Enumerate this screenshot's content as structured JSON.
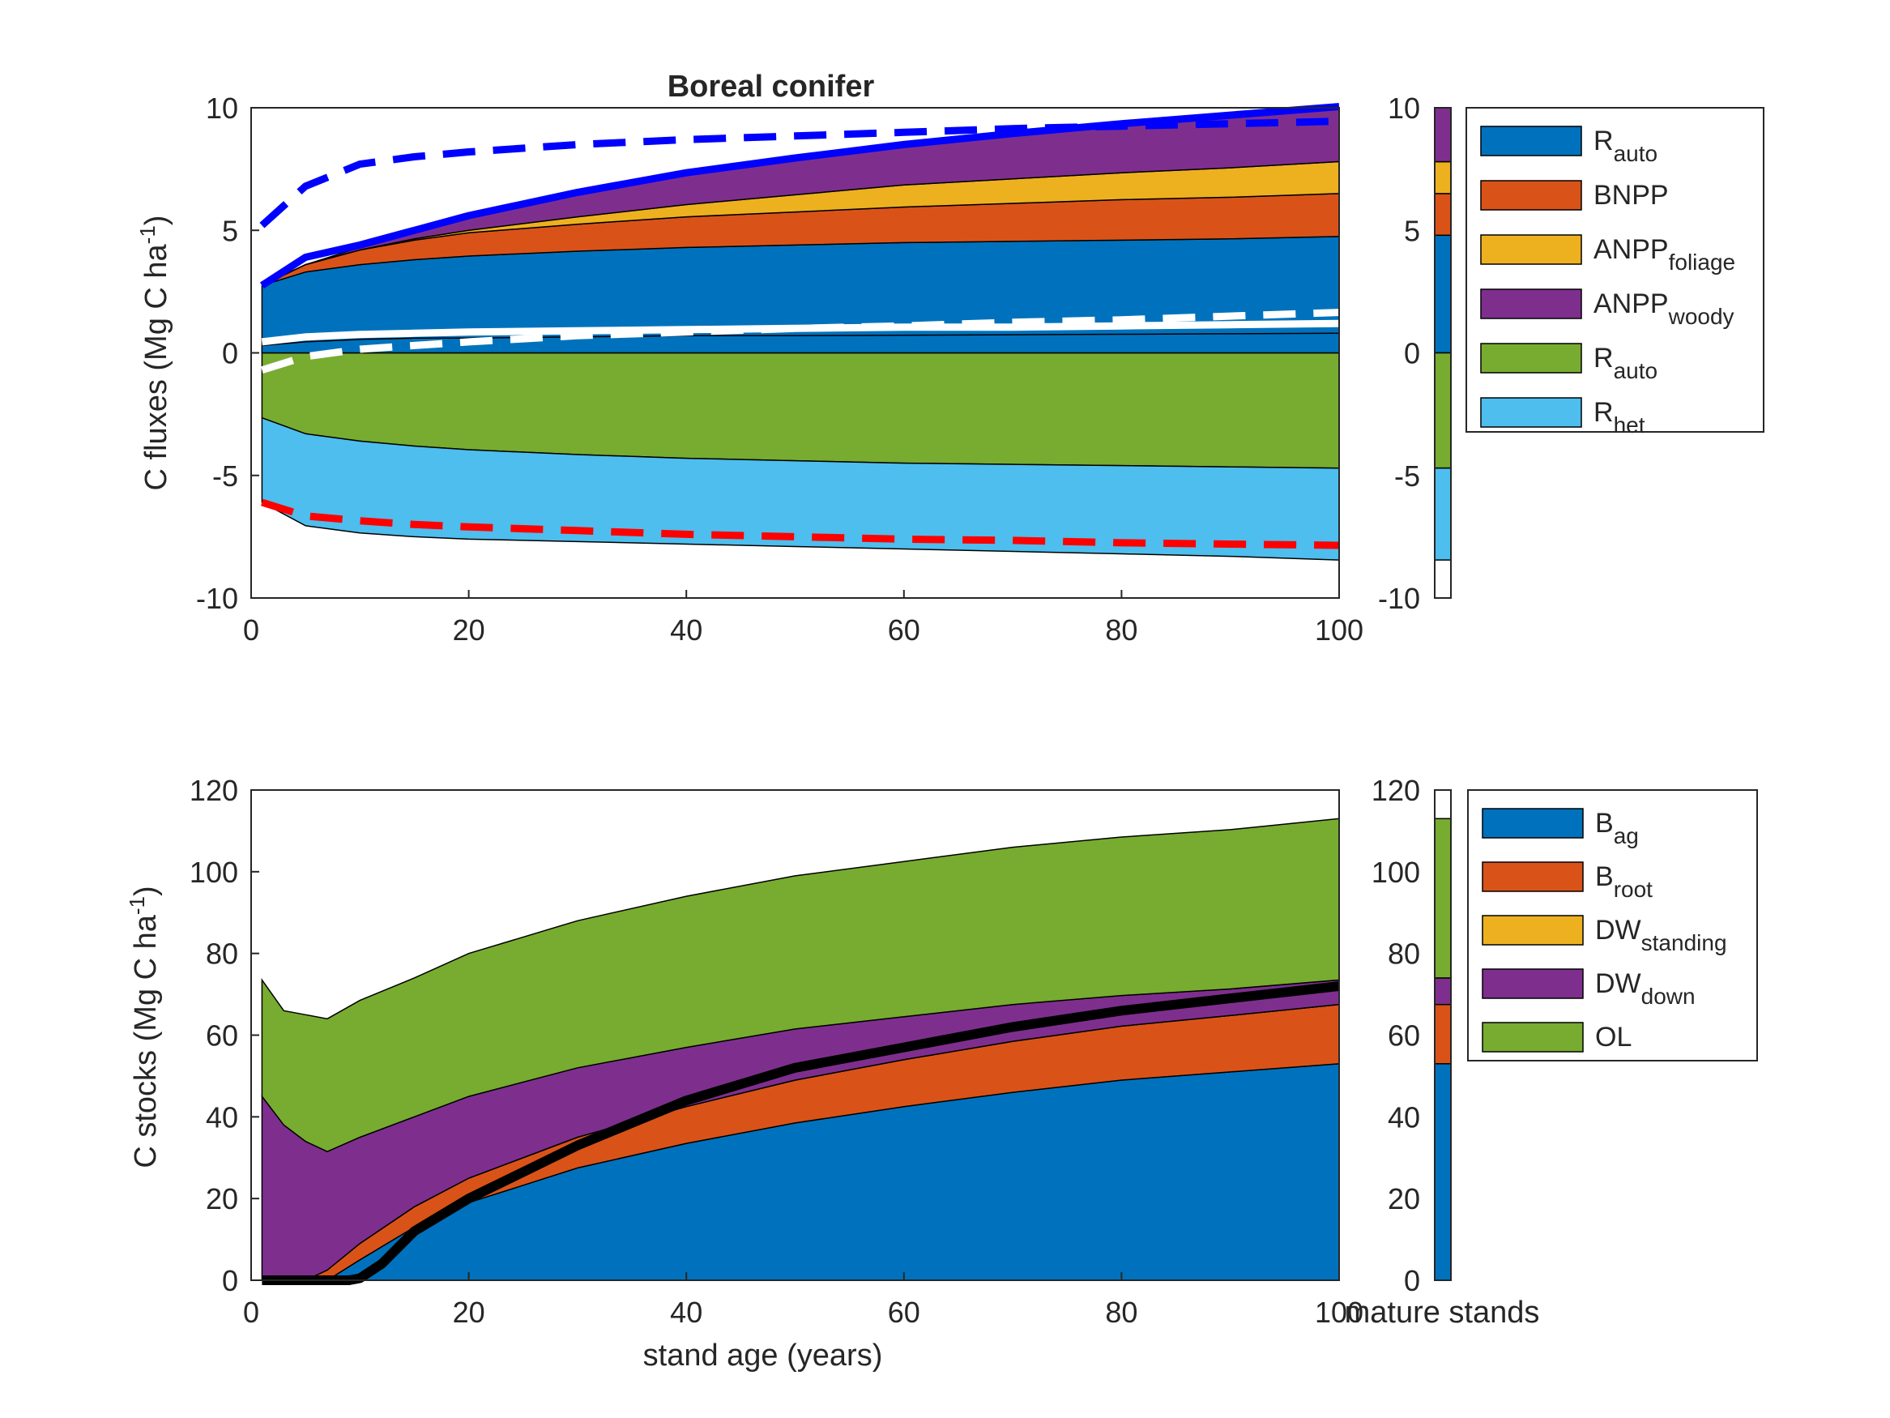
{
  "colors": {
    "blue": "#0072BD",
    "orange": "#D95319",
    "yellow": "#EDB120",
    "purple": "#7E2F8E",
    "green": "#77AC30",
    "lightblue": "#4DBEEE",
    "line_blue": "#0000FF",
    "line_red": "#FF0000",
    "line_white": "#FFFFFF",
    "line_black": "#000000"
  },
  "chart_data": [
    {
      "id": "fluxes",
      "type": "area",
      "title": "Boreal conifer",
      "ylabel": {
        "main": "C  fluxes (Mg C ha",
        "sup": "-1",
        "end": ")"
      },
      "xlabel": "",
      "xlim": [
        0,
        100
      ],
      "ylim": [
        -10,
        10
      ],
      "xticks": [
        "0",
        "20",
        "40",
        "60",
        "80",
        "100"
      ],
      "yticks": [
        "-10",
        "-5",
        "0",
        "5",
        "10"
      ],
      "x": [
        1,
        5,
        10,
        15,
        20,
        30,
        40,
        50,
        60,
        70,
        80,
        90,
        100
      ],
      "positive_series": [
        {
          "color": "blue",
          "values": [
            2.75,
            3.3,
            3.6,
            3.8,
            3.95,
            4.15,
            4.3,
            4.4,
            4.5,
            4.55,
            4.6,
            4.65,
            4.75
          ]
        },
        {
          "color": "orange",
          "values": [
            0.0,
            0.3,
            0.6,
            0.8,
            0.95,
            1.1,
            1.25,
            1.35,
            1.45,
            1.55,
            1.65,
            1.7,
            1.75
          ]
        },
        {
          "color": "yellow",
          "values": [
            0.0,
            0.0,
            0.0,
            0.05,
            0.1,
            0.3,
            0.5,
            0.7,
            0.9,
            1.0,
            1.1,
            1.2,
            1.3
          ]
        },
        {
          "color": "purple",
          "values": [
            0.0,
            0.0,
            0.1,
            0.3,
            0.55,
            1.0,
            1.3,
            1.5,
            1.65,
            1.8,
            1.9,
            2.05,
            2.2
          ]
        }
      ],
      "negative_series": [
        {
          "color": "green",
          "values": [
            2.65,
            3.3,
            3.6,
            3.8,
            3.95,
            4.15,
            4.3,
            4.4,
            4.5,
            4.55,
            4.6,
            4.65,
            4.7
          ]
        },
        {
          "color": "lightblue",
          "values": [
            3.45,
            3.75,
            3.75,
            3.7,
            3.65,
            3.55,
            3.5,
            3.5,
            3.5,
            3.55,
            3.6,
            3.65,
            3.75
          ]
        }
      ],
      "nep_band": {
        "color": "blue",
        "values": [
          0.3,
          0.45,
          0.55,
          0.6,
          0.6,
          0.65,
          0.7,
          0.7,
          0.72,
          0.74,
          0.76,
          0.78,
          0.8
        ]
      },
      "lines": [
        {
          "color": "line_blue",
          "dash": false,
          "values": [
            2.75,
            3.9,
            4.4,
            5.0,
            5.6,
            6.55,
            7.35,
            7.95,
            8.5,
            8.95,
            9.35,
            9.7,
            10.05
          ]
        },
        {
          "color": "line_blue",
          "dash": true,
          "values": [
            5.2,
            6.8,
            7.7,
            8.0,
            8.2,
            8.5,
            8.7,
            8.85,
            9.0,
            9.15,
            9.25,
            9.35,
            9.45
          ]
        },
        {
          "color": "line_red",
          "dash": true,
          "values": [
            -6.1,
            -6.65,
            -6.85,
            -7.0,
            -7.1,
            -7.25,
            -7.4,
            -7.5,
            -7.6,
            -7.65,
            -7.75,
            -7.8,
            -7.85
          ]
        },
        {
          "color": "line_white",
          "dash": true,
          "values": [
            -0.7,
            -0.15,
            0.15,
            0.3,
            0.45,
            0.7,
            0.85,
            1.0,
            1.1,
            1.25,
            1.35,
            1.5,
            1.65
          ]
        },
        {
          "color": "line_white",
          "dash": false,
          "values": [
            0.45,
            0.65,
            0.75,
            0.8,
            0.85,
            0.9,
            0.95,
            1.0,
            1.05,
            1.05,
            1.1,
            1.15,
            1.2
          ]
        }
      ],
      "mature_bar": {
        "yticks": [
          "-10",
          "-5",
          "0",
          "5",
          "10"
        ],
        "positive": [
          {
            "color": "blue",
            "values": [
              4.8
            ]
          },
          {
            "color": "orange",
            "values": [
              1.7
            ]
          },
          {
            "color": "yellow",
            "values": [
              1.3
            ]
          },
          {
            "color": "purple",
            "values": [
              2.2
            ]
          }
        ],
        "negative": [
          {
            "color": "green",
            "values": [
              4.7
            ]
          },
          {
            "color": "lightblue",
            "values": [
              3.75
            ]
          }
        ]
      },
      "legend": {
        "position": "right",
        "entries": [
          {
            "color": "blue",
            "label": "R",
            "sub": "auto"
          },
          {
            "color": "orange",
            "label": "BNPP",
            "sub": ""
          },
          {
            "color": "yellow",
            "label": "ANPP",
            "sub": "foliage"
          },
          {
            "color": "purple",
            "label": "ANPP",
            "sub": "woody"
          },
          {
            "color": "green",
            "label": "R",
            "sub": "auto"
          },
          {
            "color": "lightblue",
            "label": "R",
            "sub": "het"
          }
        ]
      }
    },
    {
      "id": "stocks",
      "type": "area",
      "title": "",
      "ylabel": {
        "main": "C  stocks (Mg C ha",
        "sup": "-1",
        "end": ")"
      },
      "xlabel": "stand age (years)",
      "xlim": [
        0,
        100
      ],
      "ylim": [
        0,
        120
      ],
      "xticks": [
        "0",
        "20",
        "40",
        "60",
        "80",
        "100"
      ],
      "yticks": [
        "0",
        "20",
        "40",
        "60",
        "80",
        "100",
        "120"
      ],
      "x": [
        1,
        3,
        5,
        7,
        10,
        15,
        20,
        30,
        40,
        50,
        60,
        70,
        80,
        90,
        100
      ],
      "series": [
        {
          "color": "blue",
          "values": [
            0,
            0,
            0,
            0,
            5,
            13,
            19,
            27.5,
            33.5,
            38.5,
            42.5,
            46,
            49,
            51,
            53
          ]
        },
        {
          "color": "orange",
          "values": [
            0,
            0,
            0,
            2.5,
            4,
            5,
            6,
            7.5,
            9,
            10.5,
            11.5,
            12.5,
            13.2,
            13.8,
            14.5
          ]
        },
        {
          "color": "yellow",
          "values": [
            0,
            0,
            0,
            0,
            0,
            0,
            0,
            0,
            0,
            0,
            0,
            0,
            0,
            0,
            0
          ]
        },
        {
          "color": "purple",
          "values": [
            45,
            38,
            34,
            29,
            26,
            22,
            20,
            17,
            14.5,
            12.5,
            10.5,
            9,
            7.5,
            6.5,
            6
          ]
        },
        {
          "color": "green",
          "values": [
            28.5,
            28,
            31,
            32.5,
            33.5,
            34,
            35,
            36,
            37,
            37.5,
            38,
            38.5,
            38.8,
            39,
            39.5
          ]
        }
      ],
      "lines": [
        {
          "color": "line_black",
          "dash": false,
          "width": 12,
          "x": [
            1,
            5,
            9,
            10,
            12,
            15,
            20,
            30,
            40,
            50,
            60,
            70,
            80,
            90,
            100
          ],
          "values": [
            0,
            0,
            0,
            0.5,
            4,
            12,
            20,
            33,
            44,
            52,
            57,
            62,
            66,
            69,
            72
          ]
        }
      ],
      "mature_bar": {
        "label": "mature stands",
        "yticks": [
          "0",
          "20",
          "40",
          "60",
          "80",
          "100",
          "120"
        ],
        "series": [
          {
            "color": "blue",
            "values": [
              53
            ]
          },
          {
            "color": "orange",
            "values": [
              14.5
            ]
          },
          {
            "color": "yellow",
            "values": [
              0
            ]
          },
          {
            "color": "purple",
            "values": [
              6.5
            ]
          },
          {
            "color": "green",
            "values": [
              39
            ]
          }
        ]
      },
      "legend": {
        "position": "right",
        "entries": [
          {
            "color": "blue",
            "label": "B",
            "sub": "ag"
          },
          {
            "color": "orange",
            "label": "B",
            "sub": "root"
          },
          {
            "color": "yellow",
            "label": "DW",
            "sub": "standing"
          },
          {
            "color": "purple",
            "label": "DW",
            "sub": "down"
          },
          {
            "color": "green",
            "label": "OL",
            "sub": ""
          }
        ]
      }
    }
  ]
}
